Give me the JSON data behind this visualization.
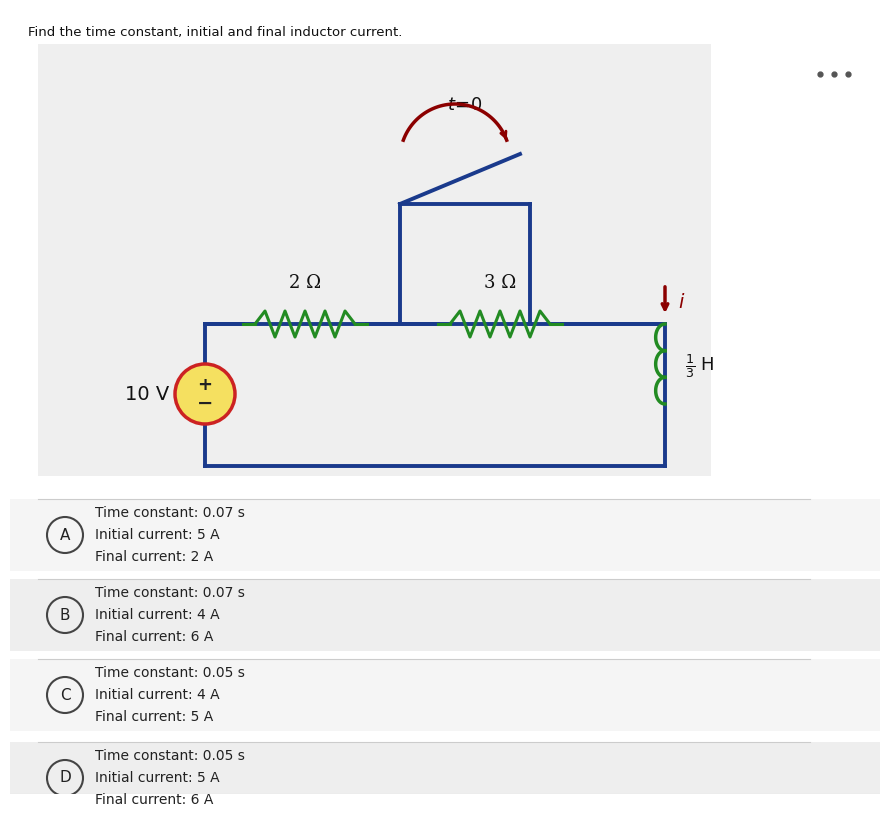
{
  "title": "Find the time constant, initial and final inductor current.",
  "white_bg": "#ffffff",
  "circuit_bg": "#f0f0f0",
  "circuit_wire_color": "#1a3a8c",
  "resistor_color": "#228B22",
  "switch_line_color": "#1a3a8c",
  "switch_arrow_color": "#8B0000",
  "inductor_color": "#228B22",
  "current_arrow_color": "#8B0000",
  "voltage_source_fill": "#f5c842",
  "voltage_source_edge": "#cc2222",
  "voltage_label": "10 V",
  "resistor1_label": "2 Ω",
  "resistor2_label": "3 Ω",
  "switch_label": "t = 0",
  "current_label": "i",
  "dots_color": "#555555",
  "options": [
    {
      "letter": "A",
      "line1": "Time constant: 0.07 s",
      "line2": "Initial current: 5 A",
      "line3": "Final current: 2 A"
    },
    {
      "letter": "B",
      "line1": "Time constant: 0.07 s",
      "line2": "Initial current: 4 A",
      "line3": "Final current: 6 A"
    },
    {
      "letter": "C",
      "line1": "Time constant: 0.05 s",
      "line2": "Initial current: 4 A",
      "line3": "Final current: 5 A"
    },
    {
      "letter": "D",
      "line1": "Time constant: 0.05 s",
      "line2": "Initial current: 5 A",
      "line3": "Final current: 6 A"
    }
  ]
}
